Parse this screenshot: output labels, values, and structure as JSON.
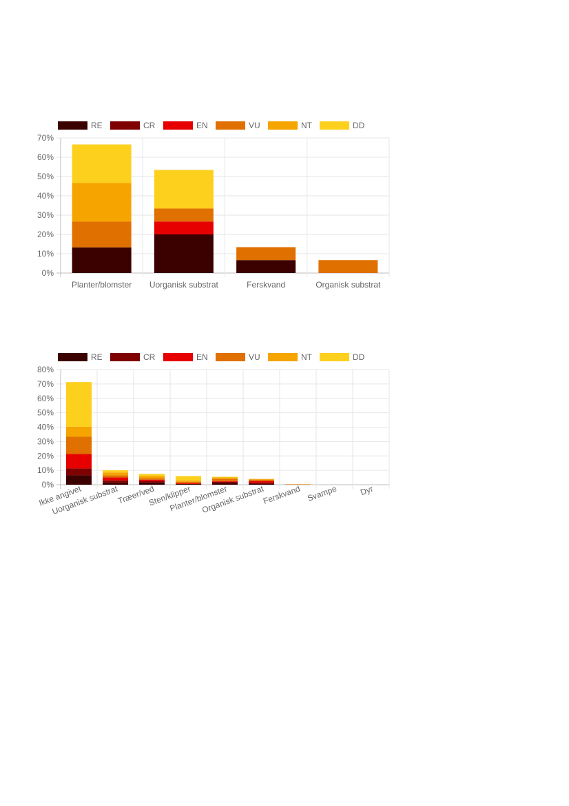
{
  "colors": {
    "RE": "#3b0000",
    "CR": "#7f0000",
    "EN": "#e60000",
    "VU": "#e07000",
    "NT": "#f5a400",
    "DD": "#fdd01e"
  },
  "chart_data": [
    {
      "type": "bar",
      "stacked": true,
      "legend": [
        "RE",
        "CR",
        "EN",
        "VU",
        "NT",
        "DD"
      ],
      "legend_position": "top",
      "grid": true,
      "categories": [
        "Planter/blomster",
        "Uorganisk substrat",
        "Ferskvand",
        "Organisk substrat"
      ],
      "ylim": [
        0,
        70
      ],
      "yticks": [
        "0%",
        "10%",
        "20%",
        "30%",
        "40%",
        "50%",
        "60%",
        "70%"
      ],
      "series": [
        {
          "name": "RE",
          "values": [
            13.3,
            20,
            6.7,
            0
          ]
        },
        {
          "name": "CR",
          "values": [
            0,
            0,
            0,
            0
          ]
        },
        {
          "name": "EN",
          "values": [
            0,
            6.7,
            0,
            0
          ]
        },
        {
          "name": "VU",
          "values": [
            13.3,
            6.7,
            6.7,
            6.7
          ]
        },
        {
          "name": "NT",
          "values": [
            20,
            0,
            0,
            0
          ]
        },
        {
          "name": "DD",
          "values": [
            20,
            20,
            0,
            0
          ]
        }
      ]
    },
    {
      "type": "bar",
      "stacked": true,
      "legend": [
        "RE",
        "CR",
        "EN",
        "VU",
        "NT",
        "DD"
      ],
      "legend_position": "top",
      "grid": true,
      "categories": [
        "Ikke angivet",
        "Uorganisk substrat",
        "Træer/ved",
        "Sten/klipper",
        "Planter/blomster",
        "Organisk substrat",
        "Ferskvand",
        "Svampe",
        "Dyr"
      ],
      "ylim": [
        0,
        80
      ],
      "yticks": [
        "0%",
        "10%",
        "20%",
        "30%",
        "40%",
        "50%",
        "60%",
        "70%",
        "80%"
      ],
      "series": [
        {
          "name": "RE",
          "values": [
            6.5,
            1.5,
            1.5,
            0.5,
            1.0,
            0.5,
            0,
            0,
            0
          ]
        },
        {
          "name": "CR",
          "values": [
            4.8,
            1.5,
            1.0,
            0,
            1.0,
            1.0,
            0,
            0,
            0
          ]
        },
        {
          "name": "EN",
          "values": [
            10.0,
            2.0,
            1.0,
            0.5,
            0.5,
            1.0,
            0,
            0,
            0
          ]
        },
        {
          "name": "VU",
          "values": [
            12.0,
            1.5,
            1.0,
            1.0,
            1.5,
            1.0,
            0.3,
            0,
            0
          ]
        },
        {
          "name": "NT",
          "values": [
            7.0,
            2.0,
            1.5,
            1.0,
            1.0,
            0.5,
            0,
            0,
            0
          ]
        },
        {
          "name": "DD",
          "values": [
            31.0,
            1.5,
            1.5,
            3.0,
            0.5,
            0,
            0,
            0,
            0
          ]
        }
      ]
    }
  ]
}
